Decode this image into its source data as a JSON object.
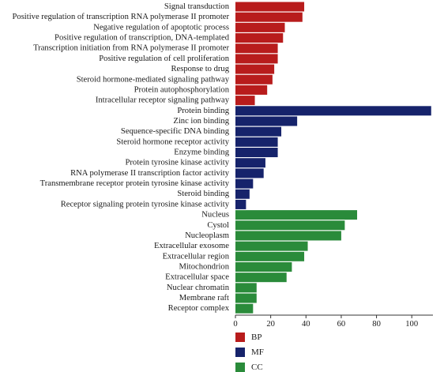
{
  "chart_data": {
    "type": "bar",
    "orientation": "horizontal",
    "title": "",
    "xlabel": "",
    "ylabel": "",
    "xlim": [
      0,
      112
    ],
    "xticks": [
      0,
      20,
      40,
      60,
      80,
      100
    ],
    "grid": false,
    "legend_position": "bottom-left",
    "groups": [
      {
        "name": "BP",
        "color": "#b81c1c"
      },
      {
        "name": "MF",
        "color": "#16236b"
      },
      {
        "name": "CC",
        "color": "#2a8b3a"
      }
    ],
    "categories": [
      "Signal transduction",
      "Positive regulation of transcription RNA polymerase II promoter",
      "Negative regulation of apoptotic process",
      "Positive regulation of transcription, DNA-templated",
      "Transcription initiation from RNA polymerase II promoter",
      "Positive regulation of cell proliferation",
      "Response to drug",
      "Steroid hormone-mediated signaling pathway",
      "Protein autophosphorylation",
      "Intracellular receptor signaling pathway",
      "Protein binding",
      "Zinc ion binding",
      "Sequence-specific DNA binding",
      "Steroid hormone receptor activity",
      "Enzyme binding",
      "Protein tyrosine kinase activity",
      "RNA polymerase II transcription factor activity",
      "Transmembrane receptor protein tyrosine kinase activity",
      "Steroid binding",
      "Receptor signaling protein tyrosine kinase activity",
      "Nucleus",
      "Cystol",
      "Nucleoplasm",
      "Extracellular exosome",
      "Extracellular region",
      "Mitochondrion",
      "Extracellular space",
      "Nuclear chromatin",
      "Membrane raft",
      "Receptor complex"
    ],
    "values": [
      39,
      38,
      28,
      27,
      24,
      24,
      22,
      21,
      18,
      11,
      111,
      35,
      26,
      24,
      24,
      17,
      16,
      10,
      8,
      6,
      69,
      62,
      60,
      41,
      39,
      32,
      29,
      12,
      12,
      10
    ],
    "category_group": [
      "BP",
      "BP",
      "BP",
      "BP",
      "BP",
      "BP",
      "BP",
      "BP",
      "BP",
      "BP",
      "MF",
      "MF",
      "MF",
      "MF",
      "MF",
      "MF",
      "MF",
      "MF",
      "MF",
      "MF",
      "CC",
      "CC",
      "CC",
      "CC",
      "CC",
      "CC",
      "CC",
      "CC",
      "CC",
      "CC"
    ]
  }
}
